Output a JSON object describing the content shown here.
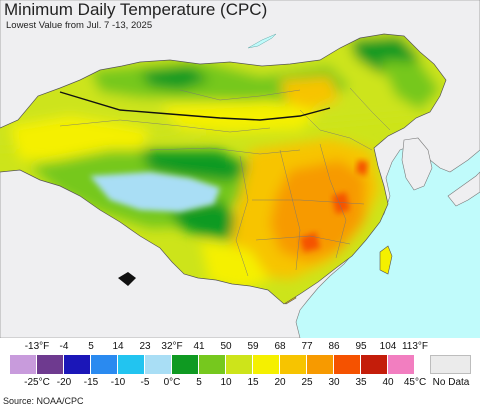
{
  "header": {
    "title": "Minimum Daily Temperature (CPC)",
    "subtitle": "Lowest Value from Jul. 7 -13, 2025"
  },
  "legend": {
    "fahrenheit_ticks": [
      "-13°F",
      "-4",
      "5",
      "14",
      "23",
      "32°F",
      "41",
      "50",
      "59",
      "68",
      "77",
      "86",
      "95",
      "104",
      "113°F"
    ],
    "celsius_ticks": [
      "-25°C",
      "-20",
      "-15",
      "-10",
      "-5",
      "0°C",
      "5",
      "10",
      "15",
      "20",
      "25",
      "30",
      "35",
      "40",
      "45°C"
    ],
    "colors": [
      "#c89bdc",
      "#6e3a8f",
      "#1b16b8",
      "#2a8af0",
      "#22c4f0",
      "#a9def5",
      "#0f9a22",
      "#76c81e",
      "#cde41a",
      "#f5f000",
      "#f7c400",
      "#f79a00",
      "#f55200",
      "#c41d0a",
      "#f27ec0"
    ],
    "no_data_label": "No Data",
    "no_data_color": "#ebebeb"
  },
  "map": {
    "ocean_color": "#c0fbfb",
    "outside_land_color": "#efeff1",
    "border_color": "#555555"
  },
  "footer": {
    "source": "Source: NOAA/CPC"
  }
}
